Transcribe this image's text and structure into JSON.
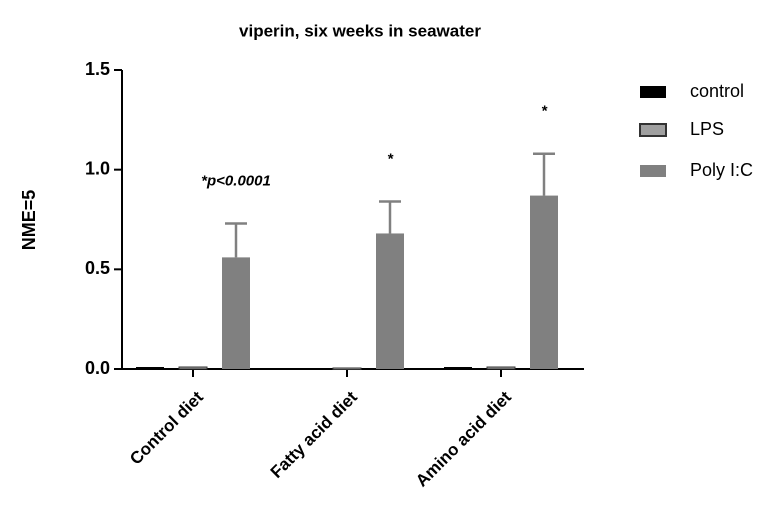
{
  "chart_data": {
    "type": "bar",
    "title": "viperin, six weeks in seawater",
    "ylabel": "NME=5",
    "categories": [
      "Control diet",
      "Fatty acid diet",
      "Amino acid diet"
    ],
    "series": [
      {
        "name": "control",
        "color": "#000000",
        "values": [
          0.01,
          0.005,
          0.01
        ]
      },
      {
        "name": "LPS",
        "color": "#a0a0a0",
        "values": [
          0.01,
          0.005,
          0.01
        ]
      },
      {
        "name": "Poly I:C",
        "color": "#808080",
        "values": [
          0.56,
          0.68,
          0.87
        ],
        "errors": [
          0.17,
          0.16,
          0.21
        ]
      }
    ],
    "annotations": [
      "*p<0.0001",
      "*",
      "*"
    ],
    "ylim": [
      0,
      1.5
    ],
    "yticks": [
      {
        "value": 0,
        "label": "0.0"
      },
      0.5,
      {
        "value": 1,
        "label": "1.0"
      },
      1.5
    ],
    "legend": "right"
  }
}
